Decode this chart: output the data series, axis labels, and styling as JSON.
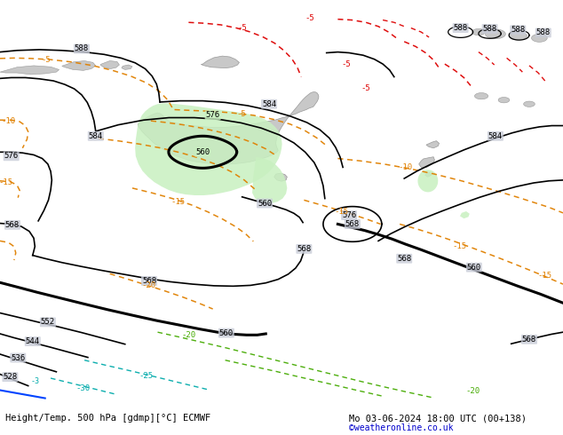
{
  "title_left": "Height/Temp. 500 hPa [gdmp][°C] ECMWF",
  "title_right": "Mo 03-06-2024 18:00 UTC (00+138)",
  "copyright": "©weatheronline.co.uk",
  "bg_color": "#d8d8d8",
  "sea_color": "#c8ccd8",
  "land_color": "#c8c8c8",
  "green_fill_color": "#c8f0c0",
  "fig_width": 6.34,
  "fig_height": 4.9,
  "dpi": 100
}
